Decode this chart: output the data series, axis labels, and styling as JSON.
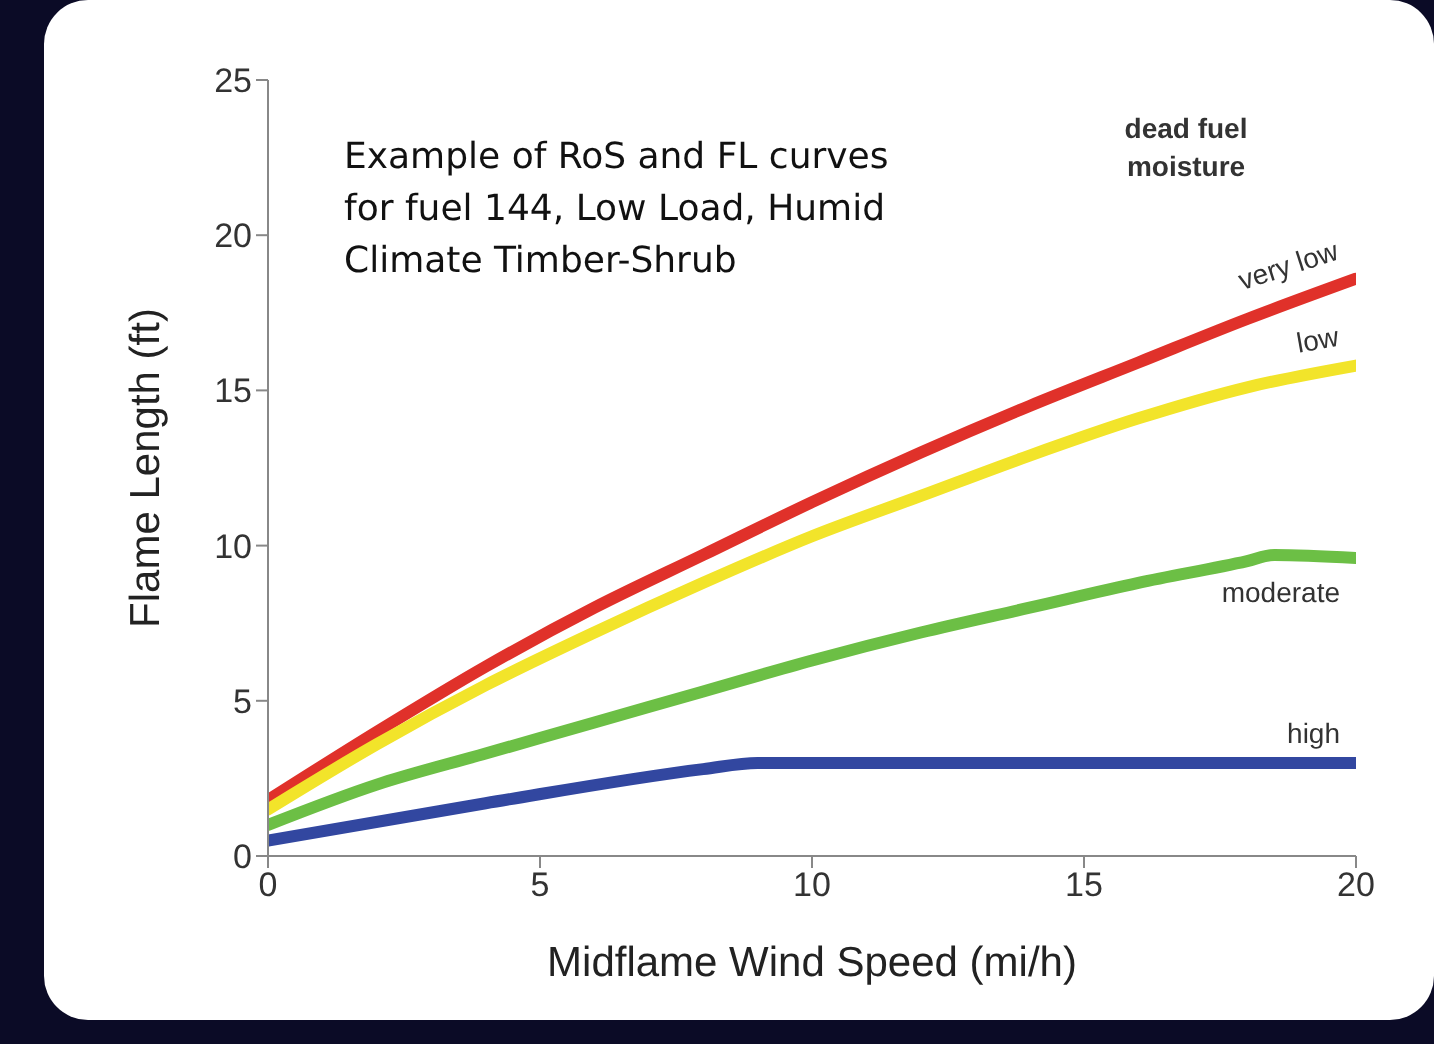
{
  "chart_data": {
    "type": "line",
    "xlabel": "Midflame Wind Speed (mi/h)",
    "ylabel": "Flame Length (ft)",
    "legend_title": "dead fuel moisture",
    "annotations": [
      "Example of RoS and FL curves for fuel 144, Low Load, Humid Climate Timber-Shrub"
    ],
    "xlim": [
      0,
      20
    ],
    "xticks": [
      0,
      5,
      10,
      15,
      20
    ],
    "ylim": [
      0,
      25
    ],
    "yticks": [
      0,
      5,
      10,
      15,
      20,
      25
    ],
    "grid": false,
    "legend": false,
    "marker": "none",
    "line_style": "solid",
    "series": [
      {
        "name": "very low",
        "color": "#e0312a",
        "x": [
          0,
          2,
          4,
          6,
          8,
          10,
          12,
          14,
          16,
          18,
          20
        ],
        "values": [
          1.8,
          4,
          6.1,
          8,
          9.7,
          11.4,
          13,
          14.5,
          15.9,
          17.3,
          18.6
        ]
      },
      {
        "name": "low",
        "color": "#f2e42a",
        "x": [
          0,
          2,
          4,
          6,
          8,
          10,
          12,
          14,
          16,
          18,
          20
        ],
        "values": [
          1.5,
          3.6,
          5.5,
          7.2,
          8.8,
          10.3,
          11.6,
          12.9,
          14.1,
          15.1,
          15.8
        ]
      },
      {
        "name": "moderate",
        "color": "#6cbf45",
        "x": [
          0,
          2,
          4,
          6,
          8,
          10,
          12,
          14,
          16,
          18,
          18.5,
          20
        ],
        "values": [
          1,
          2.3,
          3.3,
          4.3,
          5.3,
          6.3,
          7.2,
          8,
          8.8,
          9.5,
          9.7,
          9.6
        ]
      },
      {
        "name": "high",
        "color": "#3247a0",
        "x": [
          0,
          4,
          8,
          9,
          20
        ],
        "values": [
          0.5,
          1.7,
          2.8,
          3,
          3
        ]
      }
    ]
  }
}
